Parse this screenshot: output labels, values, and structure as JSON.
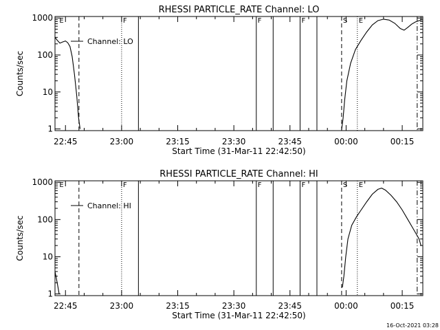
{
  "footer_timestamp": "16-Oct-2021 03:28",
  "chart_data": [
    {
      "type": "line",
      "title": "RHESSI PARTICLE_RATE Channel: LO",
      "xlabel": "Start Time (31-Mar-11 22:42:50)",
      "ylabel": "Counts/sec",
      "yscale": "log",
      "xlim_minutes": [
        -2.8,
        95.5
      ],
      "ylim": [
        0.9,
        1100
      ],
      "x_ticks": [
        {
          "t": 0,
          "label": "22:45"
        },
        {
          "t": 15,
          "label": "23:00"
        },
        {
          "t": 30,
          "label": "23:15"
        },
        {
          "t": 45,
          "label": "23:30"
        },
        {
          "t": 60,
          "label": "23:45"
        },
        {
          "t": 75,
          "label": "00:00"
        },
        {
          "t": 90,
          "label": "00:15"
        }
      ],
      "y_ticks": [
        {
          "v": 1,
          "label": "1"
        },
        {
          "v": 10,
          "label": "10"
        },
        {
          "v": 100,
          "label": "100"
        },
        {
          "v": 1000,
          "label": "1000"
        }
      ],
      "legend": {
        "label": "Channel: LO",
        "placement": "top-left"
      },
      "markers": [
        {
          "t": -2.0,
          "label": "E",
          "style": "none"
        },
        {
          "t": 3.6,
          "label": "",
          "style": "dashed"
        },
        {
          "t": 15.0,
          "label": "F",
          "style": "dotted"
        },
        {
          "t": 19.5,
          "label": "",
          "style": "solid"
        },
        {
          "t": 51.0,
          "label": "F",
          "style": "solid"
        },
        {
          "t": 55.5,
          "label": "",
          "style": "solid"
        },
        {
          "t": 62.7,
          "label": "F",
          "style": "solid"
        },
        {
          "t": 67.2,
          "label": "",
          "style": "solid"
        },
        {
          "t": 73.8,
          "label": "S",
          "style": "dashed"
        },
        {
          "t": 78.0,
          "label": "E",
          "style": "dotted"
        },
        {
          "t": 94.0,
          "label": "",
          "style": "dashdot"
        }
      ],
      "series": [
        {
          "segments": [
            [
              [
                -2.8,
                300
              ],
              [
                -2.2,
                250
              ],
              [
                -1.5,
                210
              ],
              [
                -0.8,
                225
              ],
              [
                0.0,
                240
              ],
              [
                0.6,
                215
              ],
              [
                1.2,
                170
              ],
              [
                1.8,
                90
              ],
              [
                2.4,
                30
              ],
              [
                3.0,
                8
              ],
              [
                3.5,
                2
              ],
              [
                3.9,
                1
              ]
            ],
            [
              [
                73.8,
                0.95
              ],
              [
                74.2,
                2
              ],
              [
                74.6,
                6
              ],
              [
                75.2,
                20
              ],
              [
                76.2,
                60
              ],
              [
                77.5,
                140
              ],
              [
                79.0,
                250
              ],
              [
                80.5,
                420
              ],
              [
                82.0,
                650
              ],
              [
                83.5,
                850
              ],
              [
                85.0,
                930
              ],
              [
                86.5,
                880
              ],
              [
                88.0,
                720
              ],
              [
                89.5,
                520
              ],
              [
                90.5,
                470
              ],
              [
                91.5,
                560
              ],
              [
                92.5,
                680
              ],
              [
                93.5,
                780
              ],
              [
                94.5,
                850
              ],
              [
                95.5,
                900
              ]
            ]
          ]
        }
      ]
    },
    {
      "type": "line",
      "title": "RHESSI PARTICLE_RATE Channel: HI",
      "xlabel": "Start Time (31-Mar-11 22:42:50)",
      "ylabel": "Counts/sec",
      "yscale": "log",
      "xlim_minutes": [
        -2.8,
        95.5
      ],
      "ylim": [
        0.9,
        1100
      ],
      "x_ticks": [
        {
          "t": 0,
          "label": "22:45"
        },
        {
          "t": 15,
          "label": "23:00"
        },
        {
          "t": 30,
          "label": "23:15"
        },
        {
          "t": 45,
          "label": "23:30"
        },
        {
          "t": 60,
          "label": "23:45"
        },
        {
          "t": 75,
          "label": "00:00"
        },
        {
          "t": 90,
          "label": "00:15"
        }
      ],
      "y_ticks": [
        {
          "v": 1,
          "label": "1"
        },
        {
          "v": 10,
          "label": "10"
        },
        {
          "v": 100,
          "label": "100"
        },
        {
          "v": 1000,
          "label": "1000"
        }
      ],
      "legend": {
        "label": "Channel: HI",
        "placement": "top-left"
      },
      "markers": [
        {
          "t": -2.0,
          "label": "E",
          "style": "none"
        },
        {
          "t": 3.6,
          "label": "",
          "style": "dashed"
        },
        {
          "t": 15.0,
          "label": "F",
          "style": "dotted"
        },
        {
          "t": 19.5,
          "label": "",
          "style": "solid"
        },
        {
          "t": 51.0,
          "label": "F",
          "style": "solid"
        },
        {
          "t": 55.5,
          "label": "",
          "style": "solid"
        },
        {
          "t": 62.7,
          "label": "F",
          "style": "solid"
        },
        {
          "t": 67.2,
          "label": "",
          "style": "solid"
        },
        {
          "t": 73.8,
          "label": "S",
          "style": "dashed"
        },
        {
          "t": 78.0,
          "label": "E",
          "style": "dotted"
        },
        {
          "t": 94.0,
          "label": "",
          "style": "dashdot"
        }
      ],
      "series": [
        {
          "segments": [
            [
              [
                -2.8,
                4
              ],
              [
                -2.4,
                2.5
              ],
              [
                -2.0,
                1.5
              ],
              [
                -1.7,
                1
              ]
            ],
            [
              [
                74.0,
                1.5
              ],
              [
                74.4,
                3
              ],
              [
                74.9,
                10
              ],
              [
                75.5,
                30
              ],
              [
                76.5,
                70
              ],
              [
                77.8,
                120
              ],
              [
                79.0,
                180
              ],
              [
                80.5,
                300
              ],
              [
                82.0,
                480
              ],
              [
                83.5,
                650
              ],
              [
                84.5,
                700
              ],
              [
                85.5,
                620
              ],
              [
                87.0,
                450
              ],
              [
                88.5,
                300
              ],
              [
                90.0,
                180
              ],
              [
                91.5,
                100
              ],
              [
                93.0,
                55
              ],
              [
                94.5,
                30
              ],
              [
                95.0,
                20
              ]
            ]
          ]
        }
      ]
    }
  ]
}
